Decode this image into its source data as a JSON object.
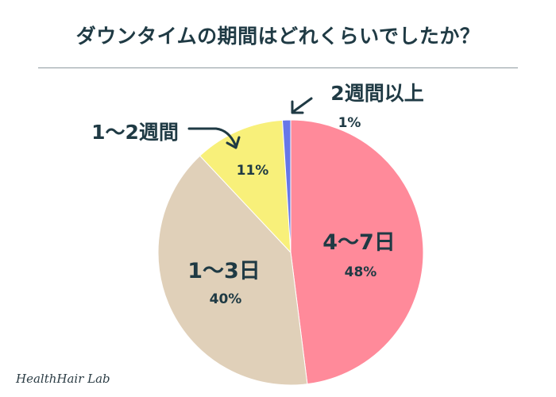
{
  "chart_data": {
    "type": "pie",
    "title": "ダウンタイムの期間はどれくらいでしたか？",
    "slices": [
      {
        "label": "4〜7日",
        "value": 48,
        "value_label": "48%",
        "color": "#ff8a9a"
      },
      {
        "label": "1〜3日",
        "value": 40,
        "value_label": "40%",
        "color": "#e0d0b9"
      },
      {
        "label": "1〜2週間",
        "value": 11,
        "value_label": "11%",
        "color": "#f8f07a"
      },
      {
        "label": "2週間以上",
        "value": 1,
        "value_label": "1%",
        "color": "#6677e8"
      }
    ]
  },
  "brand": "HealthHair Lab"
}
